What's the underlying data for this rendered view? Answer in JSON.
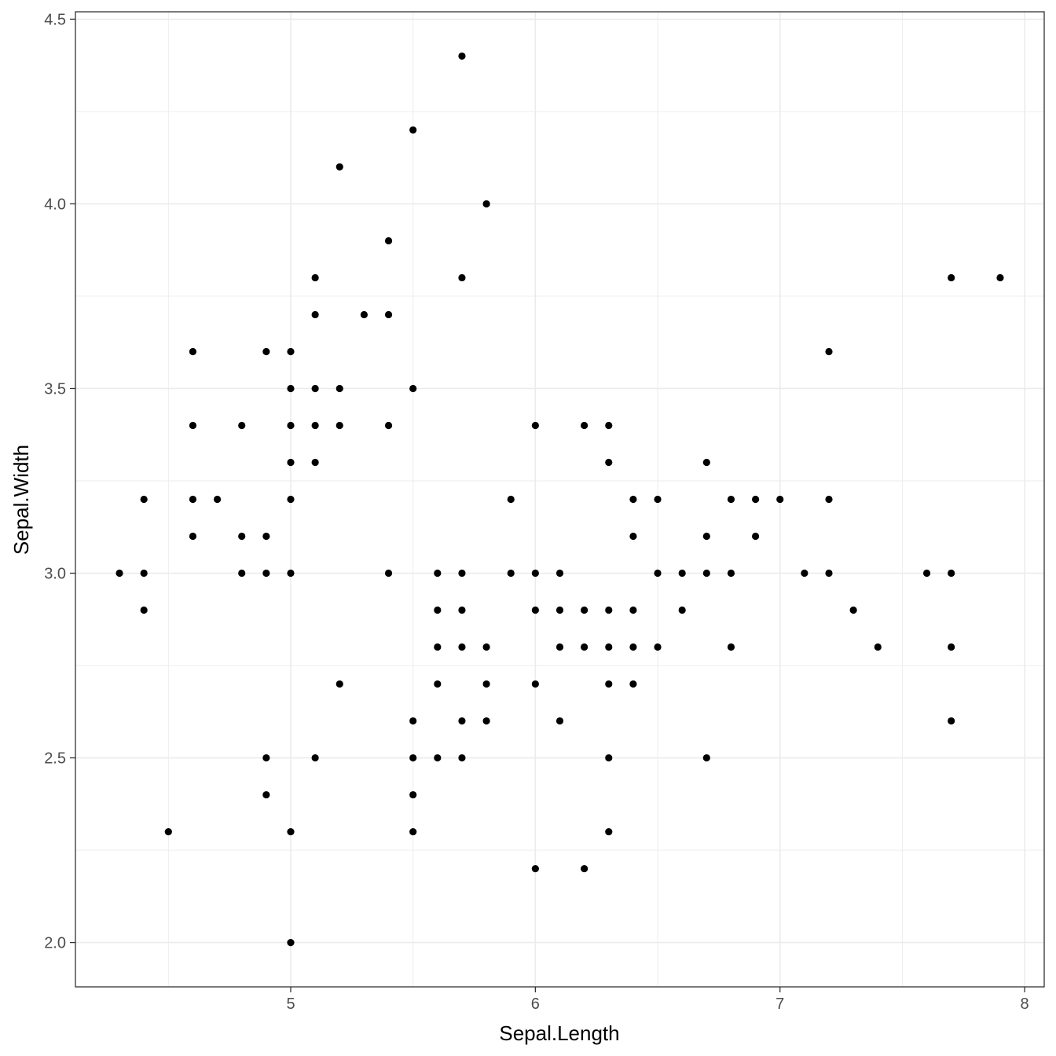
{
  "chart_data": {
    "type": "scatter",
    "title": "",
    "xlabel": "Sepal.Length",
    "ylabel": "Sepal.Width",
    "xlim": [
      4.12,
      8.08
    ],
    "ylim": [
      1.88,
      4.52
    ],
    "x_ticks": [
      5,
      6,
      7,
      8
    ],
    "x_tick_labels": [
      "5",
      "6",
      "7",
      "8"
    ],
    "x_minor_ticks": [
      4.5,
      5.5,
      6.5,
      7.5
    ],
    "y_ticks": [
      2.0,
      2.5,
      3.0,
      3.5,
      4.0,
      4.5
    ],
    "y_tick_labels": [
      "2.0",
      "2.5",
      "3.0",
      "3.5",
      "4.0",
      "4.5"
    ],
    "y_minor_ticks": [
      2.25,
      2.75,
      3.25,
      3.75,
      4.25
    ],
    "grid": true,
    "legend": "none",
    "point_color": "#000000",
    "grid_color": "#ebebeb",
    "points": [
      [
        5.7,
        4.4
      ],
      [
        5.5,
        4.2
      ],
      [
        5.2,
        4.1
      ],
      [
        5.8,
        4.0
      ],
      [
        5.4,
        3.9
      ],
      [
        5.1,
        3.8
      ],
      [
        5.7,
        3.8
      ],
      [
        7.7,
        3.8
      ],
      [
        7.9,
        3.8
      ],
      [
        5.1,
        3.7
      ],
      [
        5.3,
        3.7
      ],
      [
        5.4,
        3.7
      ],
      [
        4.6,
        3.6
      ],
      [
        4.9,
        3.6
      ],
      [
        5.0,
        3.6
      ],
      [
        7.2,
        3.6
      ],
      [
        5.0,
        3.5
      ],
      [
        5.1,
        3.5
      ],
      [
        5.2,
        3.5
      ],
      [
        5.5,
        3.5
      ],
      [
        4.6,
        3.4
      ],
      [
        4.8,
        3.4
      ],
      [
        5.0,
        3.4
      ],
      [
        5.1,
        3.4
      ],
      [
        5.2,
        3.4
      ],
      [
        5.4,
        3.4
      ],
      [
        6.0,
        3.4
      ],
      [
        6.2,
        3.4
      ],
      [
        6.3,
        3.4
      ],
      [
        5.0,
        3.3
      ],
      [
        5.1,
        3.3
      ],
      [
        6.3,
        3.3
      ],
      [
        6.7,
        3.3
      ],
      [
        4.4,
        3.2
      ],
      [
        4.6,
        3.2
      ],
      [
        4.7,
        3.2
      ],
      [
        5.0,
        3.2
      ],
      [
        5.9,
        3.2
      ],
      [
        6.4,
        3.2
      ],
      [
        6.5,
        3.2
      ],
      [
        6.8,
        3.2
      ],
      [
        6.9,
        3.2
      ],
      [
        7.0,
        3.2
      ],
      [
        7.2,
        3.2
      ],
      [
        4.6,
        3.1
      ],
      [
        4.8,
        3.1
      ],
      [
        4.9,
        3.1
      ],
      [
        6.4,
        3.1
      ],
      [
        6.7,
        3.1
      ],
      [
        6.9,
        3.1
      ],
      [
        4.3,
        3.0
      ],
      [
        4.4,
        3.0
      ],
      [
        4.8,
        3.0
      ],
      [
        4.9,
        3.0
      ],
      [
        5.0,
        3.0
      ],
      [
        5.4,
        3.0
      ],
      [
        5.6,
        3.0
      ],
      [
        5.7,
        3.0
      ],
      [
        5.9,
        3.0
      ],
      [
        6.0,
        3.0
      ],
      [
        6.1,
        3.0
      ],
      [
        6.5,
        3.0
      ],
      [
        6.6,
        3.0
      ],
      [
        6.7,
        3.0
      ],
      [
        6.8,
        3.0
      ],
      [
        7.1,
        3.0
      ],
      [
        7.2,
        3.0
      ],
      [
        7.6,
        3.0
      ],
      [
        7.7,
        3.0
      ],
      [
        4.4,
        2.9
      ],
      [
        5.6,
        2.9
      ],
      [
        5.7,
        2.9
      ],
      [
        6.0,
        2.9
      ],
      [
        6.1,
        2.9
      ],
      [
        6.2,
        2.9
      ],
      [
        6.3,
        2.9
      ],
      [
        6.4,
        2.9
      ],
      [
        6.6,
        2.9
      ],
      [
        7.3,
        2.9
      ],
      [
        5.6,
        2.8
      ],
      [
        5.7,
        2.8
      ],
      [
        5.8,
        2.8
      ],
      [
        6.1,
        2.8
      ],
      [
        6.2,
        2.8
      ],
      [
        6.3,
        2.8
      ],
      [
        6.4,
        2.8
      ],
      [
        6.5,
        2.8
      ],
      [
        6.8,
        2.8
      ],
      [
        7.4,
        2.8
      ],
      [
        7.7,
        2.8
      ],
      [
        5.2,
        2.7
      ],
      [
        5.6,
        2.7
      ],
      [
        5.8,
        2.7
      ],
      [
        6.0,
        2.7
      ],
      [
        6.3,
        2.7
      ],
      [
        6.4,
        2.7
      ],
      [
        5.5,
        2.6
      ],
      [
        5.7,
        2.6
      ],
      [
        5.8,
        2.6
      ],
      [
        6.1,
        2.6
      ],
      [
        7.7,
        2.6
      ],
      [
        4.9,
        2.5
      ],
      [
        5.1,
        2.5
      ],
      [
        5.5,
        2.5
      ],
      [
        5.6,
        2.5
      ],
      [
        5.7,
        2.5
      ],
      [
        6.3,
        2.5
      ],
      [
        6.7,
        2.5
      ],
      [
        4.9,
        2.4
      ],
      [
        5.5,
        2.4
      ],
      [
        4.5,
        2.3
      ],
      [
        5.0,
        2.3
      ],
      [
        5.5,
        2.3
      ],
      [
        6.3,
        2.3
      ],
      [
        6.0,
        2.2
      ],
      [
        6.2,
        2.2
      ],
      [
        5.0,
        2.0
      ]
    ]
  }
}
